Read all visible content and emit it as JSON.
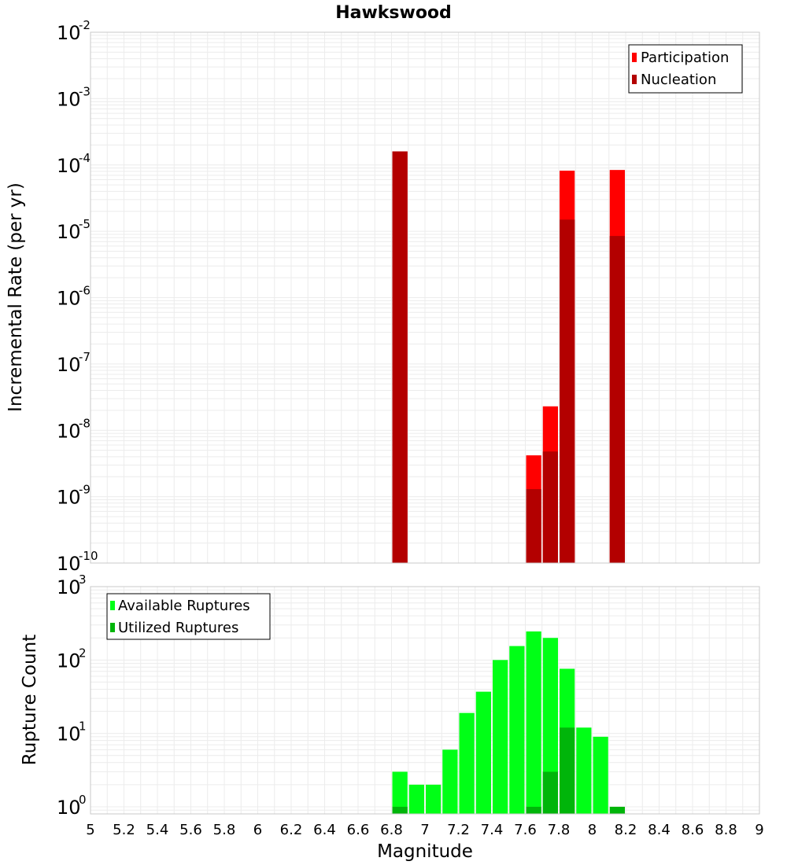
{
  "title": "Hawkswood",
  "colors": {
    "participation": "#ff0000",
    "nucleation": "#b30000",
    "available": "#00ff16",
    "utilized": "#00b50a",
    "grid": "#ececec",
    "frame": "#c8c8c8"
  },
  "chart_data": [
    {
      "type": "bar",
      "panel": "top",
      "title": "Hawkswood",
      "ylabel": "Incremental Rate (per yr)",
      "xlabel": "",
      "xlim": [
        5,
        9
      ],
      "ylim": [
        1e-10,
        0.01
      ],
      "yscale": "log",
      "grid": true,
      "legend_position": "top-right",
      "bin_width": 0.1,
      "y_tick_exponents": [
        "-2",
        "-3",
        "-4",
        "-5",
        "-6",
        "-7",
        "-8",
        "-9",
        "-10"
      ],
      "series": [
        {
          "name": "Participation",
          "color": "#ff0000",
          "points": [
            {
              "x": 6.85,
              "y": 0.00016
            },
            {
              "x": 7.65,
              "y": 4.2e-09
            },
            {
              "x": 7.75,
              "y": 2.3e-08
            },
            {
              "x": 7.85,
              "y": 8.2e-05
            },
            {
              "x": 8.15,
              "y": 8.4e-05
            }
          ]
        },
        {
          "name": "Nucleation",
          "color": "#b30000",
          "points": [
            {
              "x": 6.85,
              "y": 0.00016
            },
            {
              "x": 7.65,
              "y": 1.3e-09
            },
            {
              "x": 7.75,
              "y": 4.8e-09
            },
            {
              "x": 7.85,
              "y": 1.5e-05
            },
            {
              "x": 8.15,
              "y": 8.5e-06
            }
          ]
        }
      ]
    },
    {
      "type": "bar",
      "panel": "bottom",
      "ylabel": "Rupture Count",
      "xlabel": "Magnitude",
      "xlim": [
        5,
        9
      ],
      "ylim": [
        0.8,
        1000
      ],
      "yscale": "log",
      "grid": true,
      "legend_position": "top-left",
      "bin_width": 0.1,
      "x_ticks": [
        "5",
        "5.2",
        "5.4",
        "5.6",
        "5.8",
        "6",
        "6.2",
        "6.4",
        "6.6",
        "6.8",
        "7",
        "7.2",
        "7.4",
        "7.6",
        "7.8",
        "8",
        "8.2",
        "8.4",
        "8.6",
        "8.8",
        "9"
      ],
      "y_tick_exponents": [
        "3",
        "2",
        "1",
        "0"
      ],
      "series": [
        {
          "name": "Available Ruptures",
          "color": "#00ff16",
          "points": [
            {
              "x": 6.85,
              "y": 3
            },
            {
              "x": 6.95,
              "y": 2
            },
            {
              "x": 7.05,
              "y": 2
            },
            {
              "x": 7.15,
              "y": 6
            },
            {
              "x": 7.25,
              "y": 19
            },
            {
              "x": 7.35,
              "y": 37
            },
            {
              "x": 7.45,
              "y": 100
            },
            {
              "x": 7.55,
              "y": 155
            },
            {
              "x": 7.65,
              "y": 245
            },
            {
              "x": 7.75,
              "y": 200
            },
            {
              "x": 7.85,
              "y": 76
            },
            {
              "x": 7.95,
              "y": 12
            },
            {
              "x": 8.05,
              "y": 9
            }
          ]
        },
        {
          "name": "Utilized Ruptures",
          "color": "#00b50a",
          "points": [
            {
              "x": 6.85,
              "y": 1
            },
            {
              "x": 7.65,
              "y": 1
            },
            {
              "x": 7.75,
              "y": 3
            },
            {
              "x": 7.85,
              "y": 12
            },
            {
              "x": 8.15,
              "y": 1
            }
          ]
        }
      ]
    }
  ]
}
